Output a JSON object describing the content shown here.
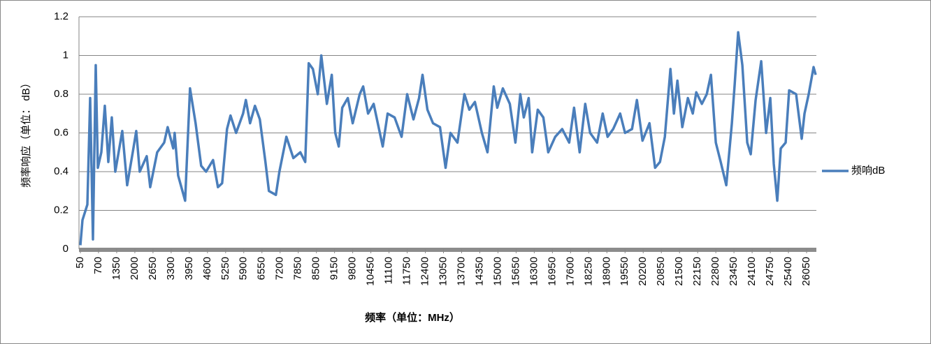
{
  "chart_data": {
    "type": "line",
    "x_label": "频率（单位：MHz）",
    "y_label": "频率响应（单位： dB）",
    "xlim": [
      0,
      26400
    ],
    "xticks": [
      50,
      700,
      1350,
      2000,
      2650,
      3300,
      3950,
      4600,
      5250,
      5900,
      6550,
      7200,
      7850,
      8500,
      9150,
      9800,
      10450,
      11100,
      11750,
      12400,
      13050,
      13700,
      14350,
      15000,
      15650,
      16300,
      16950,
      17600,
      18250,
      18900,
      19550,
      20200,
      20850,
      21500,
      22150,
      22800,
      23450,
      24100,
      24750,
      25400,
      26050
    ],
    "ylim": [
      0,
      1.2
    ],
    "yticks": [
      0,
      0.2,
      0.4,
      0.6,
      0.8,
      1,
      1.2
    ],
    "grid": true,
    "legend": "right",
    "x": [
      50,
      125,
      300,
      400,
      500,
      600,
      675,
      800,
      925,
      1050,
      1175,
      1300,
      1550,
      1725,
      1925,
      2050,
      2175,
      2425,
      2550,
      2800,
      3050,
      3175,
      3375,
      3425,
      3550,
      3800,
      3975,
      4175,
      4375,
      4550,
      4800,
      4975,
      5125,
      5300,
      5425,
      5625,
      5875,
      5975,
      6125,
      6300,
      6475,
      6675,
      6800,
      7050,
      7175,
      7425,
      7675,
      7925,
      8100,
      8225,
      8375,
      8550,
      8675,
      8875,
      9050,
      9175,
      9300,
      9425,
      9625,
      9800,
      10050,
      10175,
      10350,
      10550,
      10875,
      11050,
      11300,
      11550,
      11750,
      11975,
      12175,
      12300,
      12475,
      12675,
      12925,
      13125,
      13300,
      13550,
      13800,
      13975,
      14175,
      14425,
      14625,
      14850,
      14975,
      15175,
      15425,
      15625,
      15800,
      15925,
      16100,
      16225,
      16425,
      16625,
      16800,
      17050,
      17300,
      17550,
      17725,
      17925,
      18125,
      18300,
      18550,
      18750,
      18925,
      19125,
      19375,
      19550,
      19800,
      19975,
      20175,
      20425,
      20625,
      20800,
      20975,
      21175,
      21300,
      21425,
      21600,
      21800,
      21975,
      22100,
      22300,
      22475,
      22625,
      22800,
      22975,
      23175,
      23375,
      23475,
      23600,
      23750,
      23925,
      24050,
      24225,
      24425,
      24600,
      24750,
      24875,
      25000,
      25125,
      25300,
      25425,
      25675,
      25875,
      25975,
      26125,
      26300,
      26375
    ],
    "series": [
      {
        "name": "频响dB",
        "color": "#4a7ebb",
        "values": [
          0.02,
          0.15,
          0.23,
          0.78,
          0.05,
          0.95,
          0.42,
          0.5,
          0.74,
          0.45,
          0.68,
          0.4,
          0.61,
          0.33,
          0.5,
          0.61,
          0.4,
          0.48,
          0.32,
          0.5,
          0.55,
          0.63,
          0.52,
          0.6,
          0.38,
          0.25,
          0.83,
          0.65,
          0.43,
          0.4,
          0.46,
          0.32,
          0.34,
          0.62,
          0.69,
          0.6,
          0.7,
          0.77,
          0.65,
          0.74,
          0.67,
          0.45,
          0.3,
          0.28,
          0.4,
          0.58,
          0.47,
          0.5,
          0.45,
          0.96,
          0.93,
          0.8,
          1.0,
          0.75,
          0.9,
          0.6,
          0.53,
          0.73,
          0.78,
          0.65,
          0.8,
          0.84,
          0.7,
          0.75,
          0.53,
          0.7,
          0.68,
          0.58,
          0.8,
          0.67,
          0.78,
          0.9,
          0.72,
          0.65,
          0.63,
          0.42,
          0.6,
          0.55,
          0.8,
          0.72,
          0.76,
          0.6,
          0.5,
          0.84,
          0.73,
          0.83,
          0.75,
          0.55,
          0.8,
          0.68,
          0.78,
          0.5,
          0.72,
          0.68,
          0.5,
          0.58,
          0.62,
          0.55,
          0.73,
          0.5,
          0.75,
          0.6,
          0.55,
          0.7,
          0.58,
          0.62,
          0.7,
          0.6,
          0.62,
          0.77,
          0.56,
          0.65,
          0.42,
          0.45,
          0.58,
          0.93,
          0.7,
          0.87,
          0.63,
          0.78,
          0.7,
          0.81,
          0.75,
          0.8,
          0.9,
          0.55,
          0.45,
          0.33,
          0.65,
          0.85,
          1.12,
          0.95,
          0.55,
          0.49,
          0.77,
          0.97,
          0.6,
          0.78,
          0.44,
          0.25,
          0.52,
          0.55,
          0.82,
          0.8,
          0.57,
          0.7,
          0.8,
          0.94,
          0.9
        ]
      }
    ]
  }
}
